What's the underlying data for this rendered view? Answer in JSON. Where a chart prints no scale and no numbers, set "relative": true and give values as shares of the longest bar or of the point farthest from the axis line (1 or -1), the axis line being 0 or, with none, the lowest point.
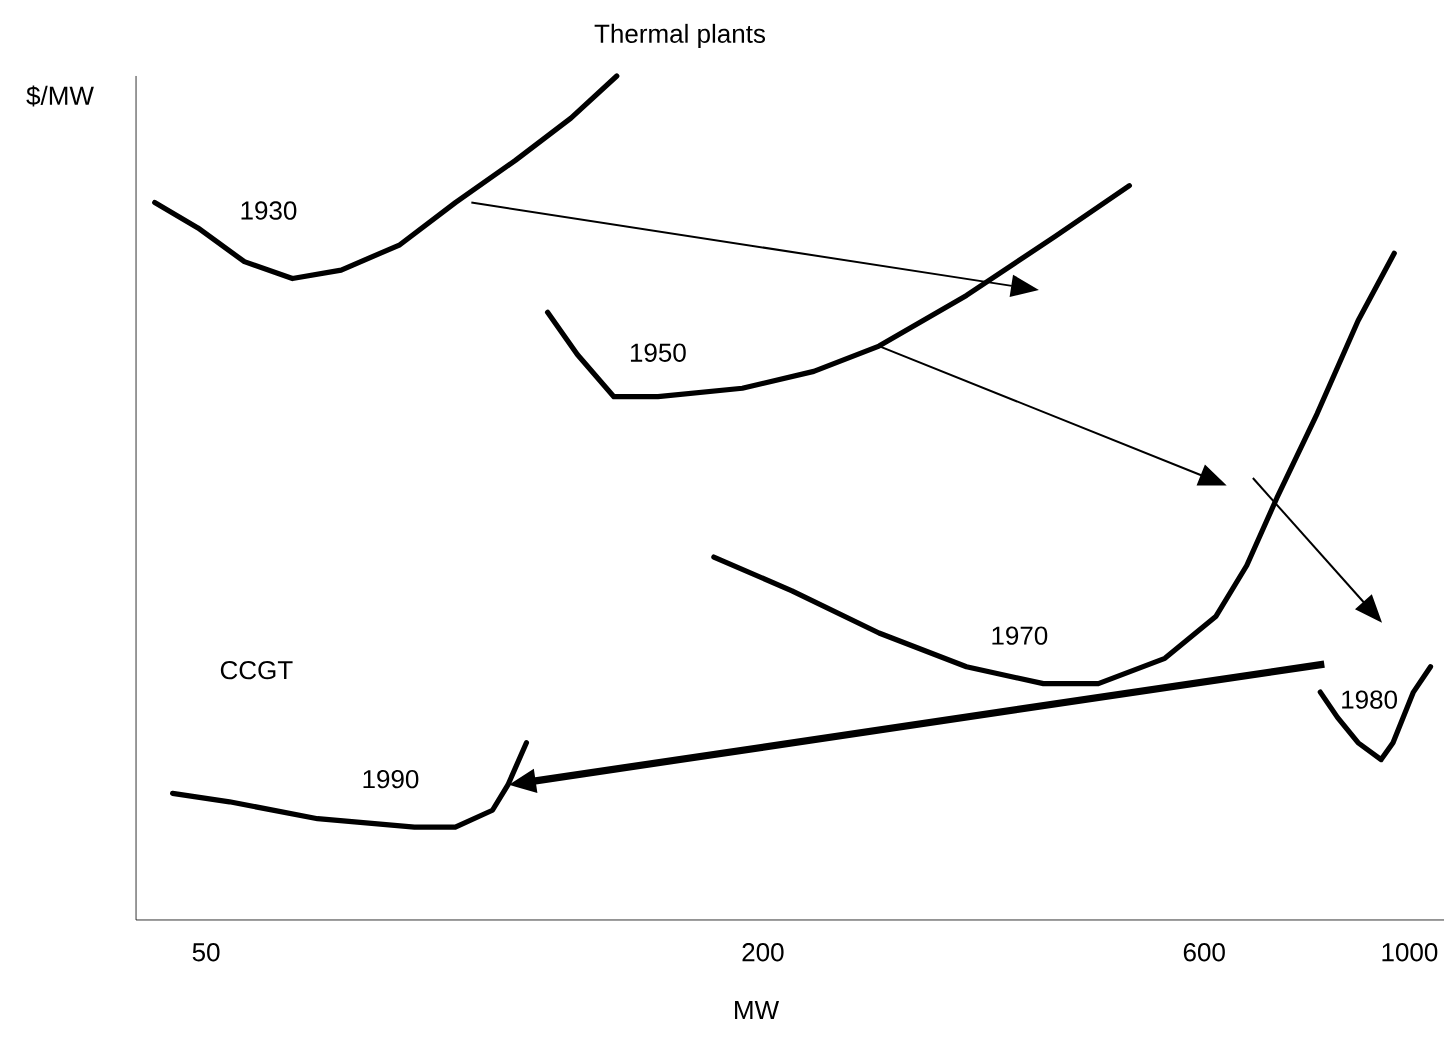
{
  "chart_data": {
    "type": "line",
    "title": "Thermal plants",
    "xlabel": "MW",
    "ylabel": "$/MW",
    "log": "x",
    "relative": true,
    "tick_labels": "x",
    "grid": false,
    "marker": "none",
    "line_style": "solid",
    "xlim": [
      42,
      1090
    ],
    "xticks": [
      50,
      200,
      600,
      1000
    ],
    "annotations": [
      "CCGT"
    ],
    "series": [
      {
        "name": "1930",
        "color": "#000000",
        "x": [
          44,
          49,
          55,
          62,
          70,
          81,
          93,
          108,
          124,
          139
        ],
        "values": [
          0.85,
          0.82,
          0.78,
          0.76,
          0.77,
          0.8,
          0.85,
          0.9,
          0.95,
          1.0
        ]
      },
      {
        "name": "1950",
        "color": "#000000",
        "x": [
          117,
          126,
          138,
          154,
          190,
          227,
          267,
          332,
          414,
          498
        ],
        "values": [
          0.72,
          0.67,
          0.62,
          0.62,
          0.63,
          0.65,
          0.68,
          0.74,
          0.81,
          0.87
        ]
      },
      {
        "name": "1970",
        "color": "#000000",
        "x": [
          177,
          215,
          267,
          332,
          402,
          461,
          544,
          618,
          667,
          719,
          795,
          880,
          963
        ],
        "values": [
          0.43,
          0.39,
          0.34,
          0.3,
          0.28,
          0.28,
          0.31,
          0.36,
          0.42,
          0.5,
          0.6,
          0.71,
          0.79
        ]
      },
      {
        "name": "1980",
        "color": "#000000",
        "x": [
          801,
          836,
          880,
          932,
          960,
          1010,
          1054
        ],
        "values": [
          0.27,
          0.24,
          0.21,
          0.19,
          0.21,
          0.27,
          0.3
        ]
      },
      {
        "name": "1990",
        "color": "#000000",
        "x": [
          46,
          53,
          66,
          84,
          93,
          102,
          106,
          111
        ],
        "values": [
          0.15,
          0.14,
          0.12,
          0.11,
          0.11,
          0.13,
          0.16,
          0.21
        ]
      }
    ]
  }
}
